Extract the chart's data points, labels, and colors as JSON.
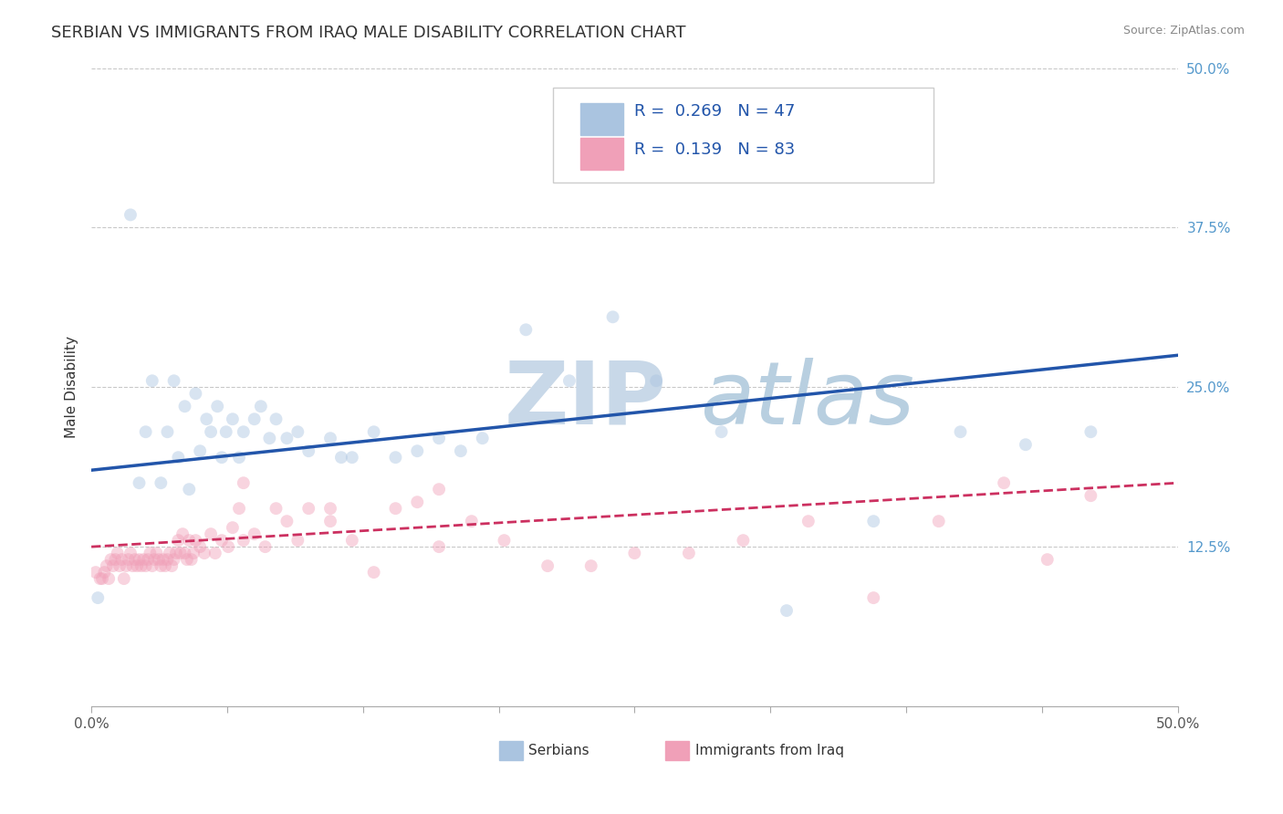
{
  "title": "SERBIAN VS IMMIGRANTS FROM IRAQ MALE DISABILITY CORRELATION CHART",
  "source_text": "Source: ZipAtlas.com",
  "ylabel": "Male Disability",
  "xlim": [
    0.0,
    0.5
  ],
  "ylim": [
    0.0,
    0.5
  ],
  "xticks": [
    0.0,
    0.0625,
    0.125,
    0.1875,
    0.25,
    0.3125,
    0.375,
    0.4375,
    0.5
  ],
  "yticks": [
    0.0,
    0.125,
    0.25,
    0.375,
    0.5
  ],
  "xtick_labels": [
    "0.0%",
    "",
    "",
    "",
    "",
    "",
    "",
    "",
    "50.0%"
  ],
  "ytick_labels": [
    "",
    "12.5%",
    "25.0%",
    "37.5%",
    "50.0%"
  ],
  "watermark_zip": "ZIP",
  "watermark_atlas": "atlas",
  "series": [
    {
      "name": "Serbians",
      "R": 0.269,
      "N": 47,
      "color": "#aac4e0",
      "line_color": "#2255aa",
      "line_style": "solid",
      "x": [
        0.003,
        0.018,
        0.022,
        0.025,
        0.028,
        0.032,
        0.035,
        0.038,
        0.04,
        0.043,
        0.045,
        0.048,
        0.05,
        0.053,
        0.055,
        0.058,
        0.06,
        0.062,
        0.065,
        0.068,
        0.07,
        0.075,
        0.078,
        0.082,
        0.085,
        0.09,
        0.095,
        0.1,
        0.11,
        0.115,
        0.12,
        0.13,
        0.14,
        0.15,
        0.16,
        0.17,
        0.18,
        0.2,
        0.22,
        0.24,
        0.26,
        0.29,
        0.32,
        0.36,
        0.4,
        0.43,
        0.46
      ],
      "y": [
        0.085,
        0.385,
        0.175,
        0.215,
        0.255,
        0.175,
        0.215,
        0.255,
        0.195,
        0.235,
        0.17,
        0.245,
        0.2,
        0.225,
        0.215,
        0.235,
        0.195,
        0.215,
        0.225,
        0.195,
        0.215,
        0.225,
        0.235,
        0.21,
        0.225,
        0.21,
        0.215,
        0.2,
        0.21,
        0.195,
        0.195,
        0.215,
        0.195,
        0.2,
        0.21,
        0.2,
        0.21,
        0.295,
        0.255,
        0.305,
        0.255,
        0.215,
        0.075,
        0.145,
        0.215,
        0.205,
        0.215
      ]
    },
    {
      "name": "Immigrants from Iraq",
      "R": 0.139,
      "N": 83,
      "color": "#f0a0b8",
      "line_color": "#cc3060",
      "line_style": "dashed",
      "x": [
        0.002,
        0.004,
        0.005,
        0.006,
        0.007,
        0.008,
        0.009,
        0.01,
        0.011,
        0.012,
        0.013,
        0.014,
        0.015,
        0.016,
        0.017,
        0.018,
        0.019,
        0.02,
        0.021,
        0.022,
        0.023,
        0.024,
        0.025,
        0.026,
        0.027,
        0.028,
        0.029,
        0.03,
        0.031,
        0.032,
        0.033,
        0.034,
        0.035,
        0.036,
        0.037,
        0.038,
        0.039,
        0.04,
        0.041,
        0.042,
        0.043,
        0.044,
        0.045,
        0.046,
        0.047,
        0.048,
        0.05,
        0.052,
        0.055,
        0.057,
        0.06,
        0.063,
        0.065,
        0.068,
        0.07,
        0.075,
        0.08,
        0.085,
        0.09,
        0.095,
        0.1,
        0.11,
        0.12,
        0.13,
        0.14,
        0.15,
        0.16,
        0.175,
        0.19,
        0.21,
        0.23,
        0.25,
        0.275,
        0.3,
        0.33,
        0.36,
        0.39,
        0.42,
        0.44,
        0.46,
        0.07,
        0.11,
        0.16
      ],
      "y": [
        0.105,
        0.1,
        0.1,
        0.105,
        0.11,
        0.1,
        0.115,
        0.11,
        0.115,
        0.12,
        0.11,
        0.115,
        0.1,
        0.11,
        0.115,
        0.12,
        0.11,
        0.115,
        0.11,
        0.115,
        0.11,
        0.115,
        0.11,
        0.115,
        0.12,
        0.11,
        0.115,
        0.12,
        0.115,
        0.11,
        0.115,
        0.11,
        0.115,
        0.12,
        0.11,
        0.115,
        0.12,
        0.13,
        0.12,
        0.135,
        0.12,
        0.115,
        0.13,
        0.115,
        0.12,
        0.13,
        0.125,
        0.12,
        0.135,
        0.12,
        0.13,
        0.125,
        0.14,
        0.155,
        0.13,
        0.135,
        0.125,
        0.155,
        0.145,
        0.13,
        0.155,
        0.145,
        0.13,
        0.105,
        0.155,
        0.16,
        0.125,
        0.145,
        0.13,
        0.11,
        0.11,
        0.12,
        0.12,
        0.13,
        0.145,
        0.085,
        0.145,
        0.175,
        0.115,
        0.165,
        0.175,
        0.155,
        0.17
      ]
    }
  ],
  "legend": {
    "color1": "#aac4e0",
    "color2": "#f0a0b8",
    "R1": "0.269",
    "N1": "47",
    "R2": "0.139",
    "N2": "83"
  },
  "background_color": "#ffffff",
  "grid_color": "#bbbbbb",
  "title_fontsize": 13,
  "axis_label_fontsize": 11,
  "tick_fontsize": 11,
  "dot_size": 100,
  "dot_alpha": 0.45,
  "watermark_color_zip": "#c8d8e8",
  "watermark_color_atlas": "#b8cfe0",
  "watermark_fontsize": 70,
  "blue_line_x0": 0.0,
  "blue_line_y0": 0.185,
  "blue_line_x1": 0.5,
  "blue_line_y1": 0.275,
  "pink_line_x0": 0.0,
  "pink_line_y0": 0.125,
  "pink_line_x1": 0.5,
  "pink_line_y1": 0.175
}
